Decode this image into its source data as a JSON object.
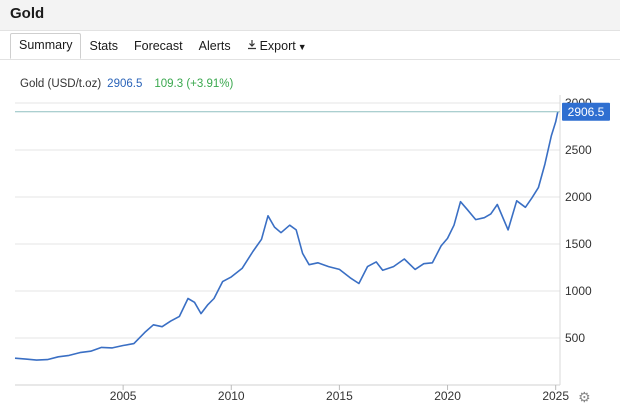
{
  "header": {
    "title": "Gold"
  },
  "tabs": [
    {
      "label": "Summary",
      "active": true
    },
    {
      "label": "Stats"
    },
    {
      "label": "Forecast"
    },
    {
      "label": "Alerts"
    },
    {
      "label": "Export"
    }
  ],
  "legend": {
    "series": "Gold (USD/t.oz)",
    "value": "2906.5",
    "change": "109.3 (+3.91%)"
  },
  "colors": {
    "line": "#3a6fc4",
    "badge": "#2f6fd1",
    "change": "#3aa84e",
    "grid": "#e6e6e6"
  },
  "icons": {
    "export": "download-icon",
    "settings": "gear-icon"
  },
  "chart_data": {
    "type": "line",
    "title": "",
    "xlabel": "",
    "ylabel": "",
    "xlim": [
      2000.0,
      2025.2
    ],
    "ylim": [
      0,
      3000
    ],
    "grid": true,
    "y_axis_side": "right",
    "x_ticks": [
      "2005",
      "2010",
      "2015",
      "2020",
      "2025"
    ],
    "y_ticks": [
      "500",
      "1000",
      "1500",
      "2000",
      "2500",
      "3000"
    ],
    "last_value_badge": "2906.5",
    "series": [
      {
        "name": "Gold (USD/t.oz)",
        "x": [
          2000.0,
          2000.5,
          2001.0,
          2001.5,
          2002.0,
          2002.5,
          2003.0,
          2003.5,
          2004.0,
          2004.5,
          2005.0,
          2005.5,
          2006.0,
          2006.4,
          2006.8,
          2007.2,
          2007.6,
          2008.0,
          2008.3,
          2008.6,
          2008.9,
          2009.2,
          2009.6,
          2010.0,
          2010.5,
          2011.0,
          2011.4,
          2011.7,
          2012.0,
          2012.3,
          2012.7,
          2013.0,
          2013.3,
          2013.6,
          2014.0,
          2014.5,
          2015.0,
          2015.5,
          2015.9,
          2016.3,
          2016.7,
          2017.0,
          2017.5,
          2018.0,
          2018.5,
          2018.9,
          2019.3,
          2019.7,
          2020.0,
          2020.3,
          2020.6,
          2020.9,
          2021.3,
          2021.7,
          2022.0,
          2022.3,
          2022.8,
          2023.2,
          2023.6,
          2023.9,
          2024.2,
          2024.5,
          2024.8,
          2025.0,
          2025.1
        ],
        "values": [
          285,
          275,
          265,
          270,
          300,
          315,
          345,
          360,
          400,
          395,
          420,
          440,
          560,
          640,
          620,
          680,
          730,
          920,
          880,
          760,
          850,
          920,
          1100,
          1150,
          1240,
          1420,
          1550,
          1800,
          1680,
          1620,
          1700,
          1650,
          1400,
          1280,
          1300,
          1260,
          1230,
          1140,
          1080,
          1260,
          1310,
          1220,
          1260,
          1340,
          1230,
          1290,
          1300,
          1480,
          1560,
          1700,
          1950,
          1870,
          1760,
          1780,
          1820,
          1920,
          1650,
          1960,
          1890,
          1990,
          2100,
          2350,
          2650,
          2800,
          2906.5
        ]
      }
    ]
  }
}
